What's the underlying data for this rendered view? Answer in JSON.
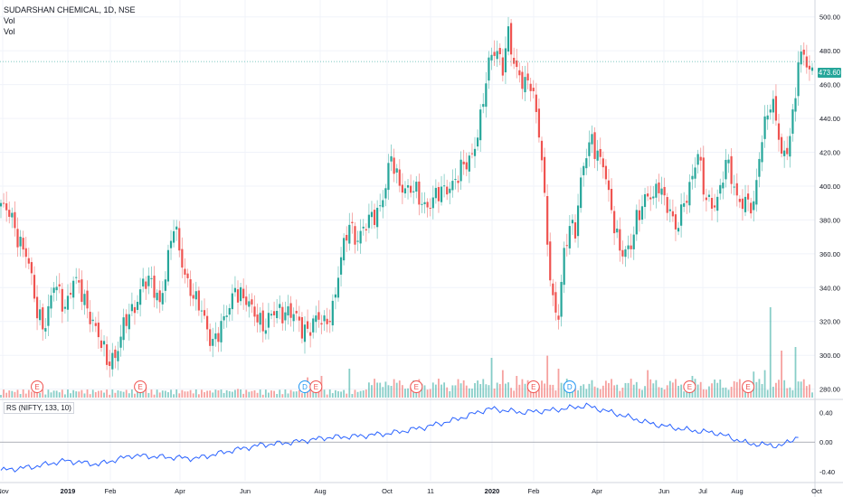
{
  "header": {
    "symbol_line": "SUDARSHAN CHEMICAL, 1D, NSE",
    "vol1": "Vol",
    "vol2": "Vol"
  },
  "rs_indicator": {
    "label": "RS (NIFTY, 133, 10)"
  },
  "last_price_label": "473.60",
  "colors": {
    "up": "#26a69a",
    "down": "#ef5350",
    "rs_line": "#2962ff",
    "grid": "#f0f3fa",
    "axis_text": "#131722"
  },
  "chart_data": [
    {
      "type": "candlestick",
      "title": "SUDARSHAN CHEMICAL, 1D, NSE",
      "x_tick_labels": [
        "Nov",
        "2019",
        "Feb",
        "Apr",
        "Jun",
        "Aug",
        "Oct",
        "11",
        "2020",
        "Feb",
        "Apr",
        "Jun",
        "Jul",
        "Aug",
        "Oct"
      ],
      "y_tick_labels": [
        "280.00",
        "300.00",
        "320.00",
        "340.00",
        "360.00",
        "380.00",
        "400.00",
        "420.00",
        "440.00",
        "460.00",
        "480.00",
        "500.00"
      ],
      "ylim": [
        275,
        510
      ],
      "last_price": 473.6,
      "close_path": [
        [
          0,
          388
        ],
        [
          4,
          380
        ],
        [
          9,
          360
        ],
        [
          13,
          325
        ],
        [
          16,
          320
        ],
        [
          19,
          340
        ],
        [
          23,
          330
        ],
        [
          26,
          345
        ],
        [
          29,
          335
        ],
        [
          33,
          322
        ],
        [
          36,
          305
        ],
        [
          38,
          295
        ],
        [
          41,
          302
        ],
        [
          44,
          316
        ],
        [
          47,
          325
        ],
        [
          51,
          345
        ],
        [
          54,
          340
        ],
        [
          57,
          332
        ],
        [
          59,
          350
        ],
        [
          62,
          375
        ],
        [
          65,
          355
        ],
        [
          68,
          340
        ],
        [
          70,
          330
        ],
        [
          72,
          325
        ],
        [
          75,
          312
        ],
        [
          77,
          310
        ],
        [
          80,
          318
        ],
        [
          82,
          330
        ],
        [
          84,
          342
        ],
        [
          87,
          332
        ],
        [
          89,
          328
        ],
        [
          92,
          325
        ],
        [
          95,
          316
        ],
        [
          97,
          322
        ],
        [
          100,
          328
        ],
        [
          103,
          326
        ],
        [
          106,
          320
        ],
        [
          108,
          316
        ],
        [
          111,
          318
        ],
        [
          113,
          320
        ],
        [
          116,
          318
        ],
        [
          119,
          330
        ],
        [
          122,
          355
        ],
        [
          125,
          378
        ],
        [
          128,
          370
        ],
        [
          131,
          375
        ],
        [
          134,
          384
        ],
        [
          136,
          390
        ],
        [
          138,
          400
        ],
        [
          140,
          415
        ],
        [
          142,
          405
        ],
        [
          145,
          400
        ],
        [
          148,
          396
        ],
        [
          150,
          392
        ],
        [
          152,
          390
        ],
        [
          155,
          392
        ],
        [
          158,
          395
        ],
        [
          161,
          402
        ],
        [
          164,
          406
        ],
        [
          167,
          412
        ],
        [
          169,
          420
        ],
        [
          172,
          440
        ],
        [
          174,
          460
        ],
        [
          176,
          478
        ],
        [
          178,
          482
        ],
        [
          180,
          472
        ],
        [
          182,
          488
        ],
        [
          184,
          470
        ],
        [
          187,
          465
        ],
        [
          190,
          460
        ],
        [
          192,
          440
        ],
        [
          194,
          418
        ],
        [
          196,
          370
        ],
        [
          198,
          330
        ],
        [
          200,
          320
        ],
        [
          202,
          360
        ],
        [
          204,
          380
        ],
        [
          206,
          375
        ],
        [
          208,
          400
        ],
        [
          210,
          418
        ],
        [
          212,
          430
        ],
        [
          214,
          420
        ],
        [
          216,
          412
        ],
        [
          218,
          392
        ],
        [
          220,
          378
        ],
        [
          222,
          366
        ],
        [
          224,
          360
        ],
        [
          226,
          362
        ],
        [
          228,
          380
        ],
        [
          230,
          392
        ],
        [
          232,
          396
        ],
        [
          234,
          390
        ],
        [
          236,
          400
        ],
        [
          238,
          394
        ],
        [
          240,
          388
        ],
        [
          242,
          372
        ],
        [
          244,
          382
        ],
        [
          246,
          396
        ],
        [
          248,
          408
        ],
        [
          250,
          420
        ],
        [
          252,
          395
        ],
        [
          254,
          390
        ],
        [
          256,
          392
        ],
        [
          258,
          398
        ],
        [
          260,
          412
        ],
        [
          262,
          405
        ],
        [
          264,
          395
        ],
        [
          266,
          392
        ],
        [
          268,
          388
        ],
        [
          270,
          385
        ],
        [
          272,
          420
        ],
        [
          274,
          440
        ],
        [
          276,
          448
        ],
        [
          278,
          438
        ],
        [
          280,
          418
        ],
        [
          282,
          425
        ],
        [
          284,
          440
        ],
        [
          286,
          470
        ],
        [
          288,
          478
        ],
        [
          290,
          470
        ]
      ],
      "volume_spikes": [
        [
          13,
          10
        ],
        [
          46,
          6
        ],
        [
          52,
          15
        ],
        [
          78,
          10
        ],
        [
          85,
          12
        ],
        [
          99,
          5
        ],
        [
          110,
          28
        ],
        [
          115,
          30
        ],
        [
          125,
          40
        ],
        [
          138,
          22
        ],
        [
          158,
          18
        ],
        [
          170,
          20
        ],
        [
          176,
          55
        ],
        [
          180,
          38
        ],
        [
          185,
          30
        ],
        [
          190,
          15
        ],
        [
          196,
          58
        ],
        [
          200,
          40
        ],
        [
          210,
          12
        ],
        [
          232,
          38
        ],
        [
          248,
          30
        ],
        [
          258,
          25
        ],
        [
          262,
          15
        ],
        [
          270,
          36
        ],
        [
          274,
          38
        ],
        [
          276,
          125
        ],
        [
          280,
          65
        ],
        [
          285,
          70
        ]
      ],
      "earnings_markers": [
        [
          13,
          "E"
        ],
        [
          50,
          "E"
        ],
        [
          109,
          "D"
        ],
        [
          113,
          "E"
        ],
        [
          149,
          "E"
        ],
        [
          191,
          "E"
        ],
        [
          204,
          "D"
        ],
        [
          247,
          "E"
        ],
        [
          268,
          "E"
        ]
      ]
    },
    {
      "type": "line",
      "title": "RS (NIFTY, 133, 10)",
      "y_tick_labels": [
        "0.40",
        "0.00",
        "-0.40"
      ],
      "ylim": [
        -0.52,
        0.55
      ],
      "baseline": 0,
      "series_path": [
        [
          0,
          -0.38
        ],
        [
          12,
          -0.33
        ],
        [
          23,
          -0.25
        ],
        [
          35,
          -0.3
        ],
        [
          47,
          -0.18
        ],
        [
          58,
          -0.2
        ],
        [
          70,
          -0.22
        ],
        [
          82,
          -0.12
        ],
        [
          93,
          -0.04
        ],
        [
          105,
          0.0
        ],
        [
          117,
          0.06
        ],
        [
          128,
          0.08
        ],
        [
          140,
          0.12
        ],
        [
          152,
          0.2
        ],
        [
          163,
          0.3
        ],
        [
          175,
          0.45
        ],
        [
          187,
          0.4
        ],
        [
          198,
          0.43
        ],
        [
          210,
          0.49
        ],
        [
          222,
          0.37
        ],
        [
          233,
          0.25
        ],
        [
          245,
          0.17
        ],
        [
          257,
          0.12
        ],
        [
          268,
          -0.02
        ],
        [
          280,
          -0.05
        ],
        [
          286,
          0.08
        ]
      ]
    }
  ]
}
